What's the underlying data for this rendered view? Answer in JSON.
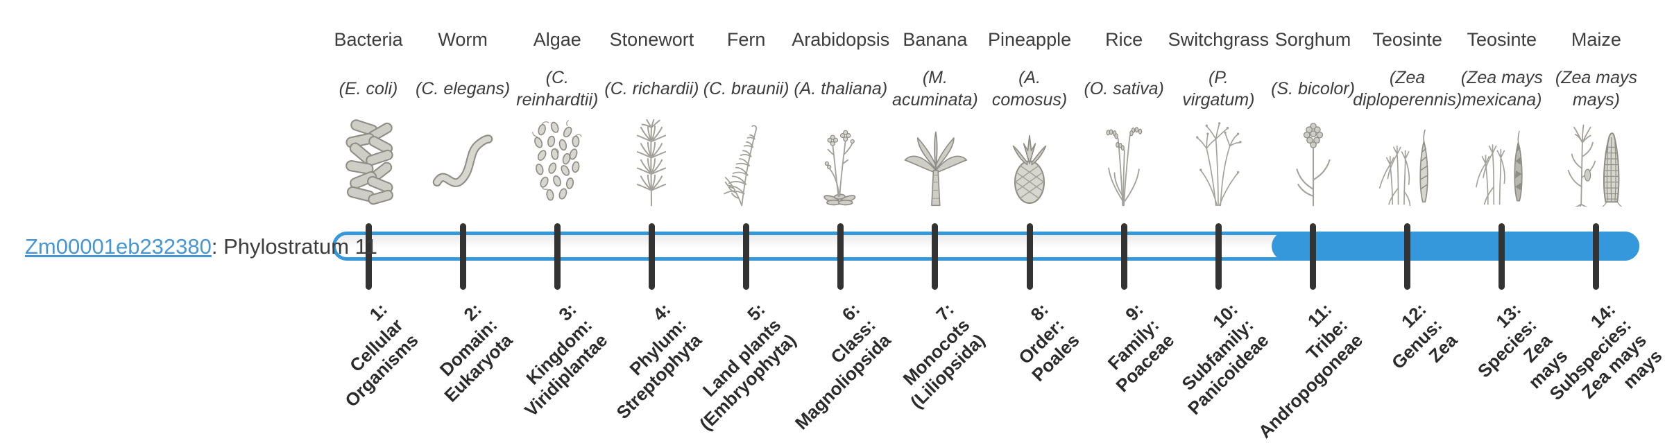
{
  "gene": {
    "id": "Zm00001eb232380",
    "suffix": ": Phylostratum 11",
    "phylostratum": 11
  },
  "timeline": {
    "total_strata": 14,
    "highlight_start_stratum": 11,
    "highlight_end_stratum": 14,
    "accent_color": "#3498db",
    "tick_color": "#333333",
    "link_color": "#4596d3"
  },
  "organisms": [
    {
      "name": "Bacteria",
      "latin": "(E. coli)",
      "icon": "bacteria-icon",
      "stratum_label": "1:\nCellular\nOrganisms"
    },
    {
      "name": "Worm",
      "latin": "(C. elegans)",
      "icon": "worm-icon",
      "stratum_label": "2:\nDomain:\nEukaryota"
    },
    {
      "name": "Algae",
      "latin": "(C.\nreinhardtii)",
      "icon": "algae-icon",
      "stratum_label": "3:\nKingdom:\nViridiplantae"
    },
    {
      "name": "Stonewort",
      "latin": "(C. richardii)",
      "icon": "stonewort-icon",
      "stratum_label": "4:\nPhylum:\nStreptophyta"
    },
    {
      "name": "Fern",
      "latin": "(C. braunii)",
      "icon": "fern-icon",
      "stratum_label": "5:\nLand plants\n(Embryophyta)"
    },
    {
      "name": "Arabidopsis",
      "latin": "(A. thaliana)",
      "icon": "arabidopsis-icon",
      "stratum_label": "6:\nClass:\nMagnoliopsida"
    },
    {
      "name": "Banana",
      "latin": "(M.\nacuminata)",
      "icon": "banana-icon",
      "stratum_label": "7:\nMonocots\n(Liliopsida)"
    },
    {
      "name": "Pineapple",
      "latin": "(A.\ncomosus)",
      "icon": "pineapple-icon",
      "stratum_label": "8:\nOrder:\nPoales"
    },
    {
      "name": "Rice",
      "latin": "(O. sativa)",
      "icon": "rice-icon",
      "stratum_label": "9:\nFamily:\nPoaceae"
    },
    {
      "name": "Switchgrass",
      "latin": "(P.\nvirgatum)",
      "icon": "switchgrass-icon",
      "stratum_label": "10:\nSubfamily:\nPanicoideae"
    },
    {
      "name": "Sorghum",
      "latin": "(S. bicolor)",
      "icon": "sorghum-icon",
      "stratum_label": "11:\nTribe:\nAndropogoneae"
    },
    {
      "name": "Teosinte",
      "latin": "(Zea\ndiploperennis)",
      "icon": "teosinte-diploperennis-icon",
      "stratum_label": "12:\nGenus:\nZea"
    },
    {
      "name": "Teosinte",
      "latin": "(Zea mays\nmexicana)",
      "icon": "teosinte-mexicana-icon",
      "stratum_label": "13:\nSpecies:\nZea\nmays"
    },
    {
      "name": "Maize",
      "latin": "(Zea mays\nmays)",
      "icon": "maize-icon",
      "stratum_label": "14:\nSubspecies:\nZea mays\nmays"
    }
  ]
}
